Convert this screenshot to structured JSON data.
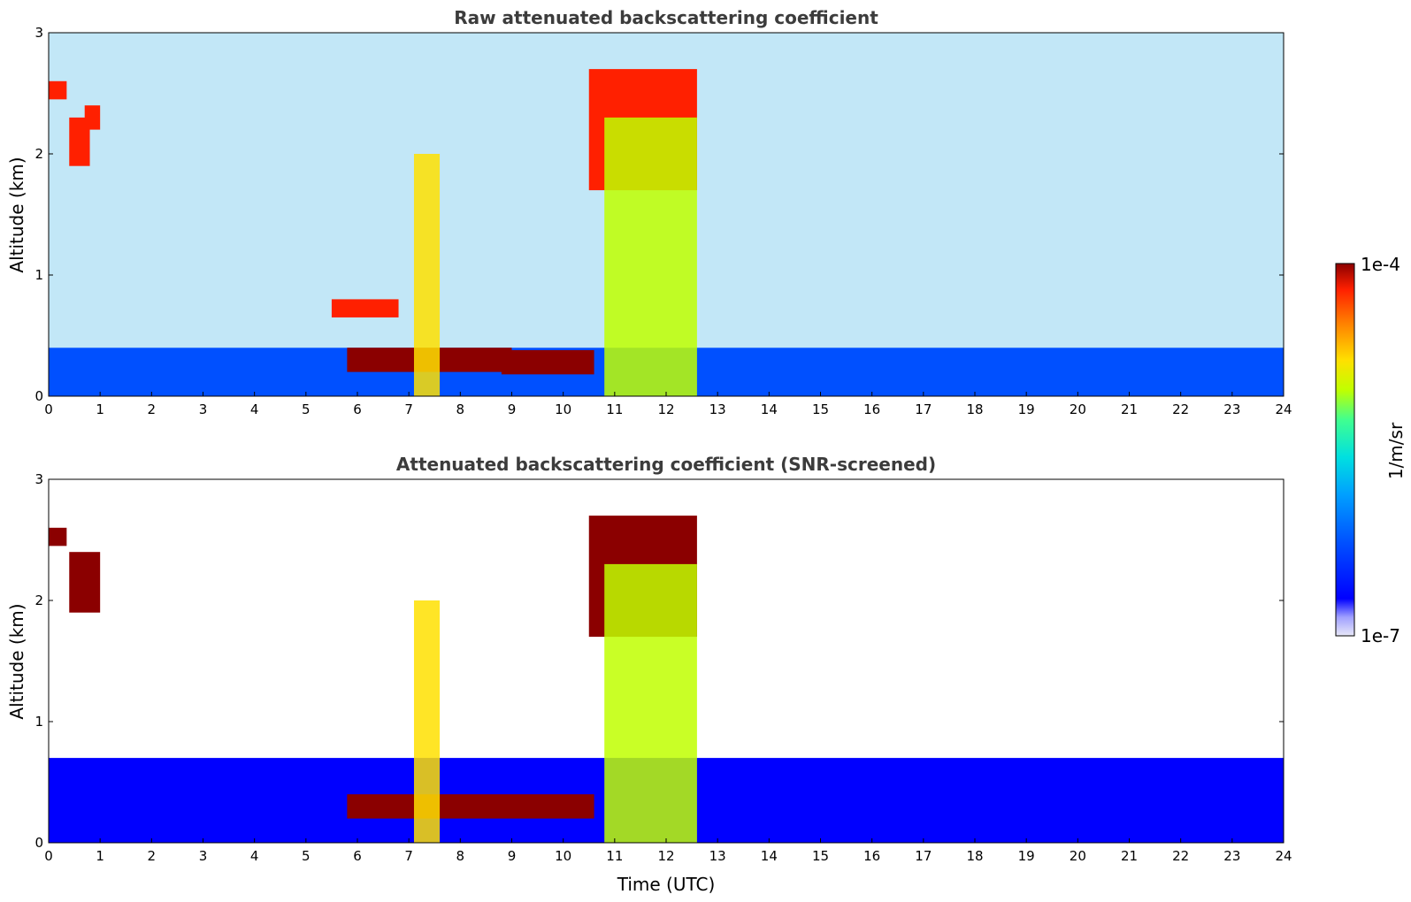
{
  "chart_data": [
    {
      "type": "heatmap",
      "title": "Raw attenuated backscattering coefficient",
      "xlabel": "",
      "ylabel": "Altitude (km)",
      "xlim": [
        0,
        24
      ],
      "ylim": [
        0,
        3
      ],
      "xticks": [
        "0",
        "1",
        "2",
        "3",
        "4",
        "5",
        "6",
        "7",
        "8",
        "9",
        "10",
        "11",
        "12",
        "13",
        "14",
        "15",
        "16",
        "17",
        "18",
        "19",
        "20",
        "21",
        "22",
        "23",
        "24"
      ],
      "yticks": [
        "0",
        "1",
        "2",
        "3"
      ],
      "features": [
        {
          "kind": "aerosol_layer",
          "t": [
            0,
            24
          ],
          "z": [
            0,
            0.4
          ],
          "value_level": 0.25
        },
        {
          "kind": "noise_background",
          "t": [
            0,
            24
          ],
          "z": [
            0.4,
            3
          ],
          "value_level": 0.3
        },
        {
          "kind": "cloud",
          "t": [
            0,
            0.35
          ],
          "z": [
            2.45,
            2.6
          ],
          "value_level": 0.95
        },
        {
          "kind": "cloud",
          "t": [
            0.4,
            0.8
          ],
          "z": [
            1.9,
            2.3
          ],
          "value_level": 0.95
        },
        {
          "kind": "cloud",
          "t": [
            0.7,
            1.0
          ],
          "z": [
            2.2,
            2.4
          ],
          "value_level": 0.95
        },
        {
          "kind": "cloud",
          "t": [
            5.5,
            6.8
          ],
          "z": [
            0.65,
            0.8
          ],
          "value_level": 0.95
        },
        {
          "kind": "cloud",
          "t": [
            5.8,
            9.0
          ],
          "z": [
            0.2,
            0.4
          ],
          "value_level": 0.97
        },
        {
          "kind": "cloud",
          "t": [
            8.8,
            10.6
          ],
          "z": [
            0.18,
            0.38
          ],
          "value_level": 0.98
        },
        {
          "kind": "cloud",
          "t": [
            10.5,
            12.6
          ],
          "z": [
            1.7,
            2.7
          ],
          "value_level": 0.95
        },
        {
          "kind": "precip_column",
          "t": [
            7.1,
            7.6
          ],
          "z": [
            0,
            2.0
          ],
          "value_level": 0.7
        },
        {
          "kind": "precip_column",
          "t": [
            10.8,
            12.6
          ],
          "z": [
            0,
            2.3
          ],
          "value_level": 0.65
        }
      ]
    },
    {
      "type": "heatmap",
      "title": "Attenuated backscattering coefficient (SNR-screened)",
      "xlabel": "Time (UTC)",
      "ylabel": "Altitude (km)",
      "xlim": [
        0,
        24
      ],
      "ylim": [
        0,
        3
      ],
      "xticks": [
        "0",
        "1",
        "2",
        "3",
        "4",
        "5",
        "6",
        "7",
        "8",
        "9",
        "10",
        "11",
        "12",
        "13",
        "14",
        "15",
        "16",
        "17",
        "18",
        "19",
        "20",
        "21",
        "22",
        "23",
        "24"
      ],
      "yticks": [
        "0",
        "1",
        "2",
        "3"
      ],
      "features": [
        {
          "kind": "aerosol_layer",
          "t": [
            0,
            24
          ],
          "z": [
            0,
            0.7
          ],
          "value_level": 0.22
        },
        {
          "kind": "cloud",
          "t": [
            0,
            0.35
          ],
          "z": [
            2.45,
            2.6
          ],
          "value_level": 1.0
        },
        {
          "kind": "cloud",
          "t": [
            0.4,
            1.0
          ],
          "z": [
            1.9,
            2.4
          ],
          "value_level": 1.0
        },
        {
          "kind": "cloud",
          "t": [
            5.8,
            10.6
          ],
          "z": [
            0.2,
            0.4
          ],
          "value_level": 1.0
        },
        {
          "kind": "cloud",
          "t": [
            10.5,
            12.6
          ],
          "z": [
            1.7,
            2.7
          ],
          "value_level": 1.0
        },
        {
          "kind": "precip_column",
          "t": [
            7.1,
            7.6
          ],
          "z": [
            0,
            2.0
          ],
          "value_level": 0.7
        },
        {
          "kind": "precip_column",
          "t": [
            10.8,
            12.6
          ],
          "z": [
            0,
            2.3
          ],
          "value_level": 0.65
        }
      ]
    }
  ],
  "colorbar": {
    "max_label": "1e-4",
    "min_label": "1e-7",
    "unit_label": "1/m/sr",
    "colors": [
      "#e8e8f8",
      "#a0a0ff",
      "#0000ff",
      "#0050ff",
      "#00a0ff",
      "#00e0e0",
      "#40ff90",
      "#c0ff00",
      "#ffe000",
      "#ff8000",
      "#ff2000",
      "#8b0000"
    ]
  }
}
